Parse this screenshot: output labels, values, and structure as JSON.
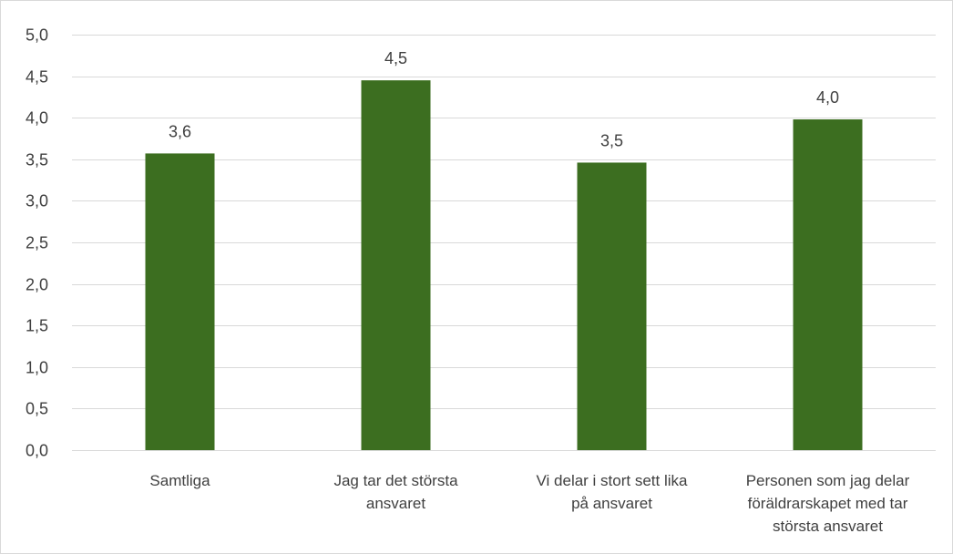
{
  "chart_data": {
    "type": "bar",
    "categories": [
      [
        "Samtliga"
      ],
      [
        "Jag tar det största",
        "ansvaret"
      ],
      [
        "Vi delar i stort sett lika",
        "på ansvaret"
      ],
      [
        "Personen som jag delar",
        "föräldrarskapet med tar",
        "största ansvaret"
      ]
    ],
    "values": [
      3.57,
      4.45,
      3.46,
      3.98
    ],
    "data_labels": [
      "3,6",
      "4,5",
      "3,5",
      "4,0"
    ],
    "ylim": [
      0,
      5
    ],
    "yticks": [
      0,
      0.5,
      1,
      1.5,
      2,
      2.5,
      3,
      3.5,
      4,
      4.5,
      5
    ],
    "ytick_labels": [
      "0,0",
      "0,5",
      "1,0",
      "1,5",
      "2,0",
      "2,5",
      "3,0",
      "3,5",
      "4,0",
      "4,5",
      "5,0"
    ],
    "bar_color": "#3c6e20",
    "grid": true,
    "legend": "none",
    "title": "",
    "xlabel": "",
    "ylabel": ""
  }
}
